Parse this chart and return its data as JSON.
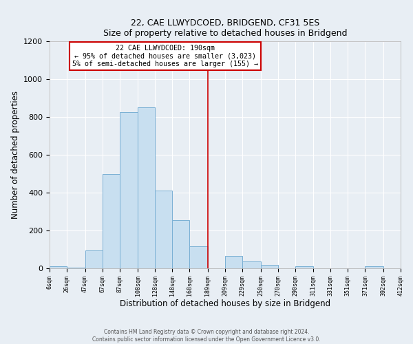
{
  "title": "22, CAE LLWYDCOED, BRIDGEND, CF31 5ES",
  "subtitle": "Size of property relative to detached houses in Bridgend",
  "xlabel": "Distribution of detached houses by size in Bridgend",
  "ylabel": "Number of detached properties",
  "bar_color": "#c8dff0",
  "bar_edge_color": "#7ab0d4",
  "bg_color": "#e8eef4",
  "plot_bg_color": "#e8eef4",
  "grid_color": "#ffffff",
  "vline_x": 189,
  "vline_color": "#cc0000",
  "annotation_title": "22 CAE LLWYDCOED: 190sqm",
  "annotation_line1": "← 95% of detached houses are smaller (3,023)",
  "annotation_line2": "5% of semi-detached houses are larger (155) →",
  "annotation_box_edge_color": "#cc0000",
  "bin_edges": [
    6,
    26,
    47,
    67,
    87,
    108,
    128,
    148,
    168,
    189,
    209,
    229,
    250,
    270,
    290,
    311,
    331,
    351,
    371,
    392,
    412
  ],
  "bar_heights": [
    10,
    5,
    95,
    500,
    825,
    850,
    410,
    255,
    115,
    0,
    65,
    35,
    18,
    0,
    12,
    0,
    0,
    0,
    10,
    0
  ],
  "xlim_min": 6,
  "xlim_max": 412,
  "ylim_max": 1200,
  "yticks": [
    0,
    200,
    400,
    600,
    800,
    1000,
    1200
  ],
  "footnote1": "Contains HM Land Registry data © Crown copyright and database right 2024.",
  "footnote2": "Contains public sector information licensed under the Open Government Licence v3.0."
}
